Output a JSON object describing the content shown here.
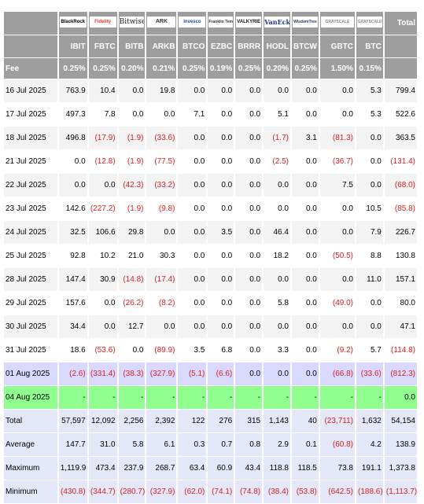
{
  "logos": [
    {
      "name": "blackrock",
      "text": "BlackRock"
    },
    {
      "name": "fidelity",
      "text": "Fidelity"
    },
    {
      "name": "bitwise",
      "text": "Bitwise"
    },
    {
      "name": "ark",
      "text": "ARK"
    },
    {
      "name": "invesco",
      "text": "Invesco"
    },
    {
      "name": "franklin",
      "text": "Franklin Templeton"
    },
    {
      "name": "valkyrie",
      "text": "VALKYRIE"
    },
    {
      "name": "vaneck",
      "text": "VanEck"
    },
    {
      "name": "wisdomtree",
      "text": "WisdomTree"
    },
    {
      "name": "grayscale",
      "text": "GRAYSCALE"
    },
    {
      "name": "grayscale-mini",
      "text": "GRAYSCALE"
    }
  ],
  "header": {
    "total_label": "Total",
    "tickers": [
      "IBIT",
      "FBTC",
      "BITB",
      "ARKB",
      "BTCO",
      "EZBC",
      "BRRR",
      "HODL",
      "BTCW",
      "GBTC",
      "BTC"
    ],
    "fee_label": "Fee",
    "fees": [
      "0.25%",
      "0.25%",
      "0.20%",
      "0.21%",
      "0.25%",
      "0.19%",
      "0.25%",
      "0.20%",
      "0.25%",
      "1.50%",
      "0.15%"
    ]
  },
  "rows": [
    {
      "date": "16 Jul 2025",
      "values": [
        "763.9",
        "10.4",
        "0.0",
        "19.8",
        "0.0",
        "0.0",
        "0.0",
        "0.0",
        "0.0",
        "0.0",
        "5.3",
        "799.4"
      ]
    },
    {
      "date": "17 Jul 2025",
      "values": [
        "497.3",
        "7.8",
        "0.0",
        "0.0",
        "7.1",
        "0.0",
        "0.0",
        "5.1",
        "0.0",
        "0.0",
        "5.3",
        "522.6"
      ]
    },
    {
      "date": "18 Jul 2025",
      "values": [
        "496.8",
        "(17.9)",
        "(1.9)",
        "(33.6)",
        "0.0",
        "0.0",
        "0.0",
        "(1.7)",
        "3.1",
        "(81.3)",
        "0.0",
        "363.5"
      ]
    },
    {
      "date": "21 Jul 2025",
      "values": [
        "0.0",
        "(12.8)",
        "(1.9)",
        "(77.5)",
        "0.0",
        "0.0",
        "0.0",
        "(2.5)",
        "0.0",
        "(36.7)",
        "0.0",
        "(131.4)"
      ]
    },
    {
      "date": "22 Jul 2025",
      "values": [
        "0.0",
        "0.0",
        "(42.3)",
        "(33.2)",
        "0.0",
        "0.0",
        "0.0",
        "0.0",
        "0.0",
        "7.5",
        "0.0",
        "(68.0)"
      ]
    },
    {
      "date": "23 Jul 2025",
      "values": [
        "142.6",
        "(227.2)",
        "(1.9)",
        "(9.8)",
        "0.0",
        "0.0",
        "0.0",
        "0.0",
        "0.0",
        "0.0",
        "10.5",
        "(85.8)"
      ]
    },
    {
      "date": "24 Jul 2025",
      "values": [
        "32.5",
        "106.6",
        "29.8",
        "0.0",
        "0.0",
        "3.5",
        "0.0",
        "46.4",
        "0.0",
        "0.0",
        "7.9",
        "226.7"
      ]
    },
    {
      "date": "25 Jul 2025",
      "values": [
        "92.8",
        "10.2",
        "21.0",
        "30.3",
        "0.0",
        "0.0",
        "0.0",
        "18.2",
        "0.0",
        "(50.5)",
        "8.8",
        "130.8"
      ]
    },
    {
      "date": "28 Jul 2025",
      "values": [
        "147.4",
        "30.9",
        "(14.8)",
        "(17.4)",
        "0.0",
        "0.0",
        "0.0",
        "0.0",
        "0.0",
        "0.0",
        "11.0",
        "157.1"
      ]
    },
    {
      "date": "29 Jul 2025",
      "values": [
        "157.6",
        "0.0",
        "(26.2)",
        "(8.2)",
        "0.0",
        "0.0",
        "0.0",
        "5.8",
        "0.0",
        "(49.0)",
        "0.0",
        "80.0"
      ]
    },
    {
      "date": "30 Jul 2025",
      "values": [
        "34.4",
        "0.0",
        "12.7",
        "0.0",
        "0.0",
        "0.0",
        "0.0",
        "0.0",
        "0.0",
        "0.0",
        "0.0",
        "47.1"
      ]
    },
    {
      "date": "31 Jul 2025",
      "values": [
        "18.6",
        "(53.6)",
        "0.0",
        "(89.9)",
        "3.5",
        "6.8",
        "0.0",
        "3.3",
        "0.0",
        "(9.2)",
        "5.7",
        "(114.8)"
      ]
    },
    {
      "date": "01 Aug 2025",
      "values": [
        "(2.6)",
        "(331.4)",
        "(38.3)",
        "(327.9)",
        "(5.1)",
        "(6.6)",
        "0.0",
        "0.0",
        "0.0",
        "(66.8)",
        "(33.6)",
        "(812.3)"
      ]
    },
    {
      "date": "04 Aug 2025",
      "values": [
        "-",
        "-",
        "-",
        "-",
        "-",
        "-",
        "-",
        "-",
        "-",
        "-",
        "-",
        "0.0"
      ]
    }
  ],
  "summary": [
    {
      "label": "Total",
      "values": [
        "57,597",
        "12,092",
        "2,256",
        "2,392",
        "122",
        "276",
        "315",
        "1,143",
        "40",
        "(23,711)",
        "1,632",
        "54,154"
      ]
    },
    {
      "label": "Average",
      "values": [
        "147.7",
        "31.0",
        "5.8",
        "6.1",
        "0.3",
        "0.7",
        "0.8",
        "2.9",
        "0.1",
        "(60.8)",
        "4.2",
        "138.9"
      ]
    },
    {
      "label": "Maximum",
      "values": [
        "1,119.9",
        "473.4",
        "237.9",
        "268.7",
        "63.4",
        "60.9",
        "43.4",
        "118.8",
        "118.5",
        "73.8",
        "191.1",
        "1,373.8"
      ]
    },
    {
      "label": "Minimum",
      "values": [
        "(430.8)",
        "(344.7)",
        "(280.7)",
        "(327.9)",
        "(62.0)",
        "(74.1)",
        "(74.8)",
        "(38.4)",
        "(53.8)",
        "(642.5)",
        "(188.6)",
        "(1,113.7)"
      ]
    }
  ],
  "colors": {
    "header_bg": "#9e9e9e",
    "negative_text": "#d92020",
    "row_even_bg": "#f3f3f3",
    "last_row_bg": "#d9d9ff",
    "green_row_bg": "#90ff90",
    "summary_bg": "#e3e7f7"
  }
}
